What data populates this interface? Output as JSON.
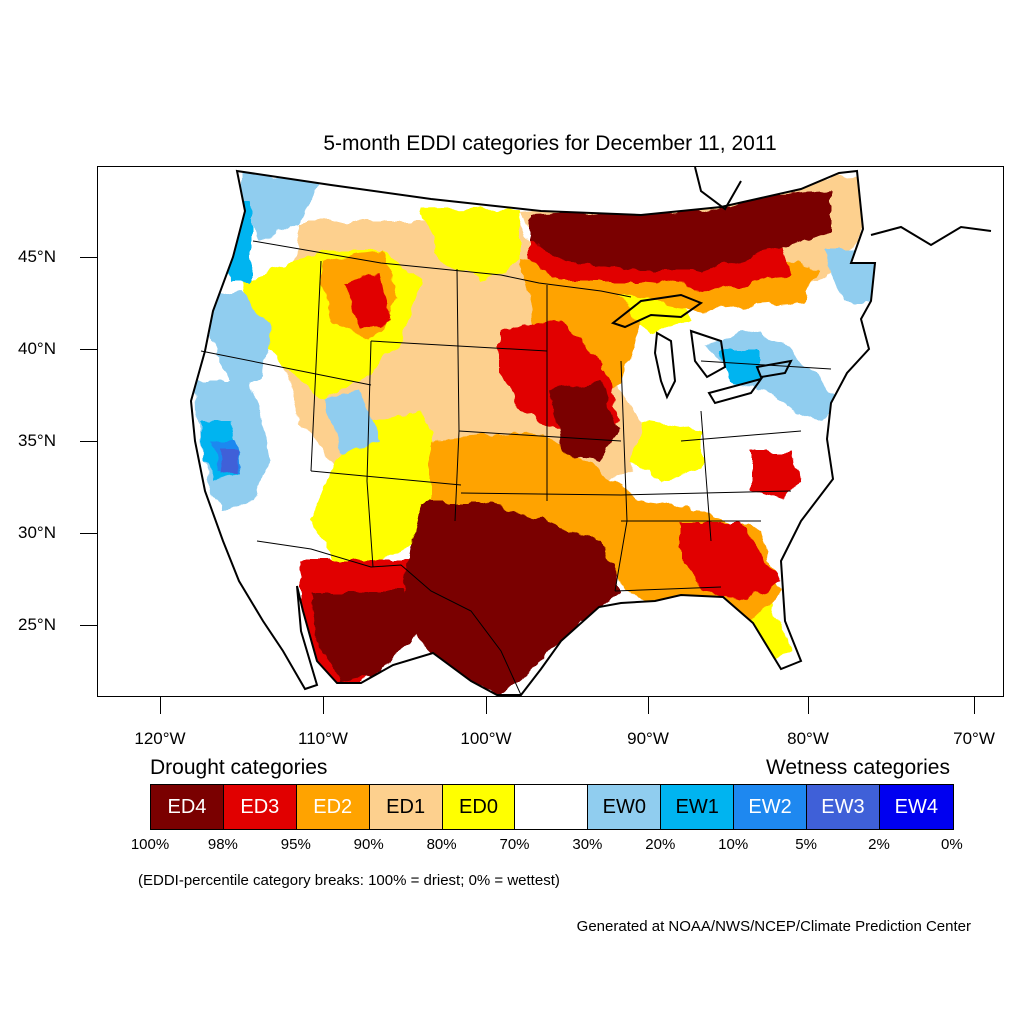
{
  "title": "5-month EDDI categories for December 11, 2011",
  "map": {
    "lat_labels": [
      "45°N",
      "40°N",
      "35°N",
      "30°N",
      "25°N"
    ],
    "lon_labels": [
      "120°W",
      "110°W",
      "100°W",
      "90°W",
      "80°W",
      "70°W"
    ],
    "colors": {
      "ED4": "#7a0000",
      "ED3": "#e10000",
      "ED2": "#ffa300",
      "ED1": "#fdd08e",
      "ED0": "#ffff00",
      "neutral": "#ffffff",
      "EW0": "#90cdef",
      "EW1": "#00b4f0",
      "EW2": "#1e88f0",
      "EW3": "#3f60d8",
      "EW4": "#0000f0"
    }
  },
  "legend": {
    "drought_heading": "Drought categories",
    "wetness_heading": "Wetness categories",
    "categories": [
      {
        "label": "ED4",
        "color": "#7a0000",
        "text_color": "#ffffff"
      },
      {
        "label": "ED3",
        "color": "#e10000",
        "text_color": "#ffffff"
      },
      {
        "label": "ED2",
        "color": "#ffa300",
        "text_color": "#ffffff"
      },
      {
        "label": "ED1",
        "color": "#fdd08e",
        "text_color": "#000000"
      },
      {
        "label": "ED0",
        "color": "#ffff00",
        "text_color": "#000000"
      },
      {
        "label": "",
        "color": "#ffffff",
        "text_color": "#000000"
      },
      {
        "label": "EW0",
        "color": "#90cdef",
        "text_color": "#000000"
      },
      {
        "label": "EW1",
        "color": "#00b4f0",
        "text_color": "#000000"
      },
      {
        "label": "EW2",
        "color": "#1e88f0",
        "text_color": "#ffffff"
      },
      {
        "label": "EW3",
        "color": "#3f60d8",
        "text_color": "#ffffff"
      },
      {
        "label": "EW4",
        "color": "#0000f0",
        "text_color": "#ffffff"
      }
    ],
    "breaks": [
      "100%",
      "98%",
      "95%",
      "90%",
      "80%",
      "70%",
      "30%",
      "20%",
      "10%",
      "5%",
      "2%",
      "0%"
    ]
  },
  "footnote": "(EDDI-percentile category breaks: 100% = driest; 0% = wettest)",
  "credit": "Generated at NOAA/NWS/NCEP/Climate Prediction Center"
}
